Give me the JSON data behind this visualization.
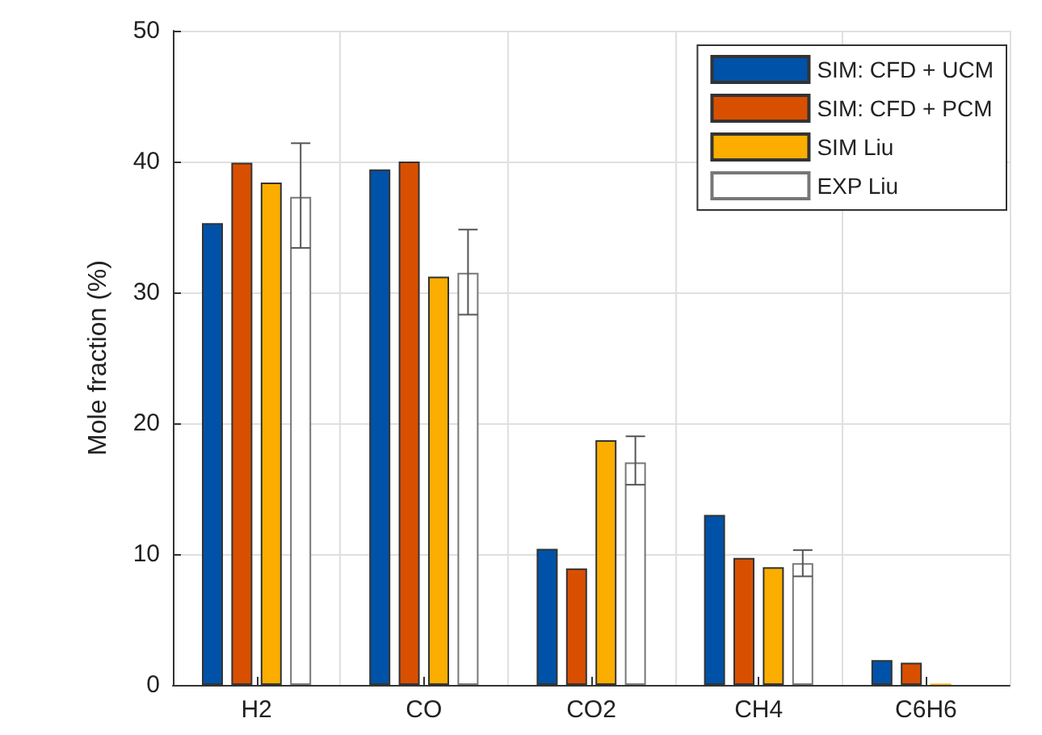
{
  "chart_data": {
    "type": "bar",
    "ylabel": "Mole fraction (%)",
    "categories": [
      "H2",
      "CO",
      "CO2",
      "CH4",
      "C6H6"
    ],
    "series": [
      {
        "name": "SIM: CFD + UCM",
        "color": "#0052a8",
        "values": [
          35.3,
          39.4,
          10.4,
          13.0,
          1.9
        ]
      },
      {
        "name": "SIM: CFD + PCM",
        "color": "#d94f00",
        "values": [
          39.9,
          40.0,
          8.9,
          9.7,
          1.7
        ]
      },
      {
        "name": "SIM Liu",
        "color": "#fbae00",
        "values": [
          38.4,
          31.2,
          18.7,
          9.0,
          0.1
        ]
      },
      {
        "name": "EXP Liu",
        "color": "#ffffff",
        "values": [
          37.3,
          31.5,
          17.0,
          9.3,
          0.1
        ],
        "errors": [
          [
            33.4,
            41.4
          ],
          [
            28.3,
            34.8
          ],
          [
            15.3,
            19.0
          ],
          [
            8.3,
            10.3
          ],
          null
        ]
      }
    ],
    "ylim": [
      0,
      50
    ],
    "yticks": [
      0,
      10,
      20,
      30,
      40,
      50
    ],
    "grid": true,
    "legend": "top right"
  }
}
